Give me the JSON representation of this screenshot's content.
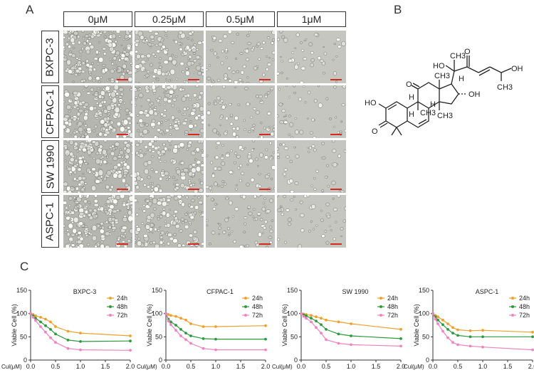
{
  "panels": {
    "a": "A",
    "b": "B",
    "c": "C"
  },
  "concentrations": [
    "0μM",
    "0.25μM",
    "0.5μM",
    "1μM"
  ],
  "cell_lines": [
    "BXPC-3",
    "CFPAC-1",
    "SW 1990",
    "ASPC-1"
  ],
  "structure_labels": {
    "ho_left": "HO",
    "o_ketone": "O",
    "ch3_top": "CH3",
    "o_side": "O",
    "ho_17": "HO",
    "h_17": "H",
    "oh_16": "OH",
    "oh_side": "OH",
    "ch3_side": "CH3",
    "o_11": "O",
    "h_9": "H",
    "h_8": "H",
    "ch3_14": "CH3",
    "ch3_10": "CH3",
    "ch3_13": "CH3",
    "o_3": "O",
    "h_10": "H"
  },
  "colors": {
    "h24": "#f0a02c",
    "h48": "#2d9a3e",
    "h72": "#ef84c0",
    "scalebar": "#d9281e"
  },
  "chart_data": [
    {
      "type": "line",
      "title": "BXPC-3",
      "xlabel": "Cul(μM)",
      "ylabel": "Viable Cell  (%)",
      "x": [
        0,
        0.05,
        0.1,
        0.2,
        0.3,
        0.4,
        0.5,
        0.75,
        1.0,
        2.0
      ],
      "xlim": [
        0,
        2.0
      ],
      "ylim": [
        0,
        150
      ],
      "xticks": [
        "0.0",
        "0.5",
        "1.0",
        "1.5",
        "2.0"
      ],
      "yticks": [
        "0",
        "50",
        "100",
        "150"
      ],
      "series": [
        {
          "name": "24h",
          "values": [
            100,
            98,
            95,
            92,
            88,
            82,
            72,
            62,
            58,
            52
          ]
        },
        {
          "name": "48h",
          "values": [
            100,
            95,
            90,
            82,
            74,
            66,
            56,
            43,
            40,
            41
          ]
        },
        {
          "name": "72h",
          "values": [
            100,
            92,
            85,
            72,
            60,
            48,
            38,
            25,
            22,
            21
          ]
        }
      ]
    },
    {
      "type": "line",
      "title": "CFPAC-1",
      "xlabel": "Cul(μM)",
      "ylabel": "Viable Cell  (%)",
      "x": [
        0,
        0.05,
        0.1,
        0.2,
        0.3,
        0.4,
        0.5,
        0.75,
        1.0,
        2.0
      ],
      "xlim": [
        0,
        2.0
      ],
      "ylim": [
        0,
        150
      ],
      "xticks": [
        "0.0",
        "0.5",
        "1.0",
        "1.5",
        "2.0"
      ],
      "yticks": [
        "0",
        "50",
        "100",
        "150"
      ],
      "series": [
        {
          "name": "24h",
          "values": [
            100,
            98,
            96,
            94,
            90,
            86,
            78,
            72,
            72,
            74
          ]
        },
        {
          "name": "48h",
          "values": [
            100,
            88,
            82,
            75,
            66,
            58,
            52,
            46,
            45,
            45
          ]
        },
        {
          "name": "72h",
          "values": [
            100,
            84,
            76,
            64,
            52,
            44,
            36,
            25,
            22,
            22
          ]
        }
      ]
    },
    {
      "type": "line",
      "title": "SW 1990",
      "xlabel": "Cul(μM)",
      "ylabel": "Viable Cell  (%)",
      "x": [
        0,
        0.05,
        0.1,
        0.2,
        0.3,
        0.4,
        0.5,
        0.75,
        1.0,
        2.0
      ],
      "xlim": [
        0,
        2.0
      ],
      "ylim": [
        0,
        150
      ],
      "xticks": [
        "0.0",
        "0.5",
        "1.0",
        "1.5",
        "2.0"
      ],
      "yticks": [
        "0",
        "50",
        "100",
        "150"
      ],
      "series": [
        {
          "name": "24h",
          "values": [
            100,
            99,
            98,
            96,
            93,
            90,
            86,
            82,
            78,
            66
          ]
        },
        {
          "name": "48h",
          "values": [
            100,
            97,
            95,
            90,
            84,
            76,
            66,
            56,
            52,
            46
          ]
        },
        {
          "name": "72h",
          "values": [
            100,
            94,
            90,
            82,
            70,
            58,
            44,
            36,
            33,
            30
          ]
        }
      ]
    },
    {
      "type": "line",
      "title": "ASPC-1",
      "xlabel": "Cul(μM)",
      "ylabel": "Viable Cell  (%)",
      "x": [
        0,
        0.05,
        0.1,
        0.2,
        0.3,
        0.4,
        0.5,
        0.75,
        1.0,
        2.0
      ],
      "xlim": [
        0,
        2.0
      ],
      "ylim": [
        0,
        150
      ],
      "xticks": [
        "0.0",
        "0.5",
        "1.0",
        "1.5",
        "2.0"
      ],
      "yticks": [
        "0",
        "50",
        "100",
        "150"
      ],
      "series": [
        {
          "name": "24h",
          "values": [
            100,
            96,
            93,
            86,
            78,
            70,
            65,
            63,
            64,
            60
          ]
        },
        {
          "name": "48h",
          "values": [
            100,
            93,
            86,
            76,
            66,
            58,
            53,
            50,
            50,
            50
          ]
        },
        {
          "name": "72h",
          "values": [
            100,
            88,
            78,
            62,
            48,
            38,
            33,
            30,
            28,
            22
          ]
        }
      ]
    }
  ]
}
